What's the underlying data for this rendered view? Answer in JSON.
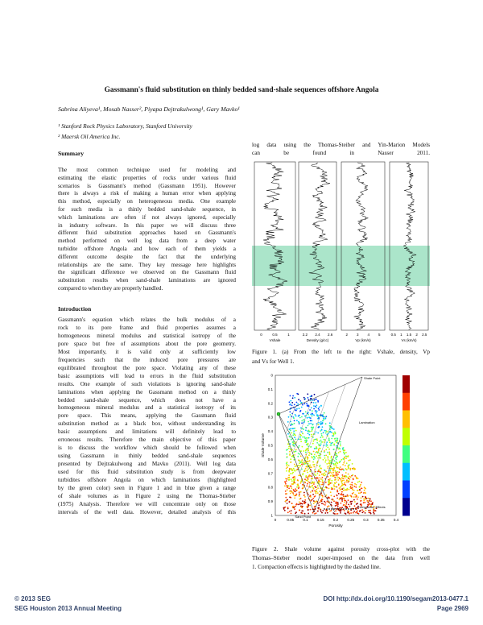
{
  "header": {
    "title": "Gassmann's fluid substitution on thinly bedded sand-shale sequences offshore Angola",
    "authors": "Sabrina Aliyeva¹, Mosab Nasser², Piyapa Dejtrakulwong¹, Gary Mavko¹",
    "affiliations": [
      "¹ Stanford Rock Physics Laboratory, Stanford University",
      "² Maersk Oil America Inc."
    ]
  },
  "summary": {
    "heading": "Summary",
    "lines": [
      "The most common technique used for modeling and",
      "estimating the elastic properties of rocks under various fluid",
      "scenarios is Gassmann's method (Gassmann 1951). However",
      "there is always a risk of making a human error when applying",
      "this method, especially on heterogeneous media. One example",
      "for such media is a thinly bedded sand-shale sequence, in",
      "which laminations are often if not always ignored, especially",
      "in industry software. In this paper we will discuss three",
      "different fluid substitution approaches based on Gassmann's",
      "method performed on well log data from a deep water",
      "turbidite offshore Angola and how each of them yields a",
      "different outcome despite the fact that the underlying",
      "relationships are the same. They key message here highlights",
      "the significant difference we observed on the Gassmann fluid",
      "substitution results when sand-shale laminations are ignored",
      "compared to when they are properly handled."
    ]
  },
  "introduction": {
    "heading": "Introduction",
    "lines": [
      "Gassmann's equation which relates the bulk modulus of a",
      "rock to its pore frame and fluid properties assumes a",
      "homogeneous mineral modulus and statistical isotropy of the",
      "pore space but free of assumptions about the pore geometry.",
      "Most importantly, it is valid only at sufficiently low",
      "frequencies such that the induced pore pressures are",
      "equilibrated throughout the pore space. Violating any of these",
      "basic assumptions will lead to errors in the fluid substitution",
      "results. One example of such violations is ignoring sand-shale",
      "laminations when applying the Gassmann method on a thinly",
      "bedded sand-shale sequence, which does not have a",
      "homogeneous mineral modulus and a statistical isotropy of its",
      "pore space. This means, applying the Gassmann fluid",
      "substitution method as a black box, without understanding its",
      "basic assumptions and limitations will definitely lead to",
      "erroneous results. Therefore the main objective of this paper",
      "is to discuss the workflow which should be followed when",
      "using Gassmann in thinly bedded sand-shale sequences",
      "presented by Dejtrakulwong and Mavko (2011). Well log data",
      "used for this fluid substitution study is from deepwater",
      "turbidites offshore Angola on which laminations (highlighted",
      "by the green color) seen in Figure 1 and in blue given a range",
      "of shale volumes as in Figure 2 using the Thomas-Stieber",
      "(1975) Analysis. Therefore we will concentrate only on those",
      "intervals of the well data. However, detailed analysis of this"
    ]
  },
  "right_column": {
    "lines": [
      "log data using the Thomas-Steiber and Yin-Marion Models",
      "can be found in Nasser 2011."
    ]
  },
  "figure1": {
    "panels": [
      {
        "label": "Vshale",
        "ticks": [
          "0",
          "0.5",
          "1"
        ]
      },
      {
        "label": "Density (g/cc)",
        "ticks": [
          "2.2",
          "2.4",
          "2.6"
        ]
      },
      {
        "label": "Vp (km/s)",
        "ticks": [
          "2",
          "3",
          "4",
          "5"
        ]
      },
      {
        "label": "Vs (km/s)",
        "ticks": [
          "0.5",
          "1",
          "1.5",
          "2",
          "2.5"
        ]
      }
    ],
    "caption": [
      "Figure 1. (a) From the left to the right: Vshale, density, Vp",
      "and Vs for Well 1."
    ]
  },
  "figure2": {
    "x_label": "Porosity",
    "y_label": "Shale Volume",
    "x_ticks": [
      "0",
      "0.05",
      "0.1",
      "0.15",
      "0.2",
      "0.25",
      "0.3",
      "0.35",
      "0.4"
    ],
    "y_ticks": [
      "0",
      "0.1",
      "0.2",
      "0.3",
      "0.4",
      "0.5",
      "0.6",
      "0.7",
      "0.8",
      "0.9",
      "1"
    ],
    "annotations": [
      "Lamination",
      "Compaction Effects",
      "Shale Point",
      "Sand Point"
    ],
    "caption": [
      "Figure 2. Shale volume against porosity cross-plot with the",
      "Thomas–Stieber model super-imposed on the data from well",
      "1. Compaction effects is highlighted by the dashed line."
    ]
  },
  "footer": {
    "copyright": "© 2013 SEG",
    "meeting": "SEG Houston 2013 Annual Meeting",
    "doi": "DOI  http://dx.doi.org/10.1190/segam2013-0477.1",
    "page": "Page 2969"
  }
}
